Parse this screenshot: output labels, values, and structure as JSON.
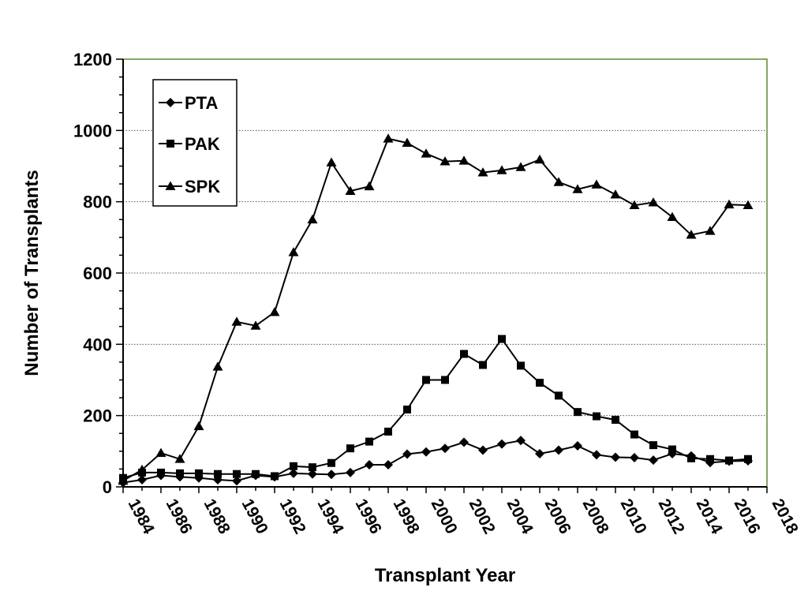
{
  "chart_data": {
    "type": "line",
    "title": "",
    "xlabel": "Transplant Year",
    "ylabel": "Number of Transplants",
    "xlim": [
      1984,
      2018
    ],
    "ylim": [
      0,
      1200
    ],
    "x_ticks": [
      1984,
      1986,
      1988,
      1990,
      1992,
      1994,
      1996,
      1998,
      2000,
      2002,
      2004,
      2006,
      2008,
      2010,
      2012,
      2014,
      2016,
      2018
    ],
    "y_ticks": [
      0,
      200,
      400,
      600,
      800,
      1000,
      1200
    ],
    "grid": "horizontal dotted",
    "legend_position": "top-left",
    "colors": {
      "plot_border": "#5b8a2e",
      "line": "#000000",
      "grid": "#555555"
    },
    "x": [
      1984,
      1985,
      1986,
      1987,
      1988,
      1989,
      1990,
      1991,
      1992,
      1993,
      1994,
      1995,
      1996,
      1997,
      1998,
      1999,
      2000,
      2001,
      2002,
      2003,
      2004,
      2005,
      2006,
      2007,
      2008,
      2009,
      2010,
      2011,
      2012,
      2013,
      2014,
      2015,
      2016,
      2017
    ],
    "series": [
      {
        "name": "PTA",
        "marker": "diamond",
        "values": [
          12,
          20,
          32,
          28,
          25,
          20,
          17,
          32,
          28,
          38,
          36,
          35,
          40,
          62,
          62,
          92,
          98,
          108,
          125,
          103,
          120,
          130,
          93,
          103,
          115,
          90,
          83,
          82,
          75,
          93,
          87,
          68,
          72,
          73
        ]
      },
      {
        "name": "PAK",
        "marker": "square",
        "values": [
          25,
          40,
          40,
          38,
          38,
          36,
          36,
          36,
          30,
          58,
          55,
          67,
          108,
          127,
          155,
          217,
          300,
          300,
          373,
          342,
          415,
          340,
          292,
          256,
          210,
          198,
          188,
          147,
          117,
          105,
          80,
          78,
          74,
          78
        ]
      },
      {
        "name": "SPK",
        "marker": "triangle",
        "values": [
          17,
          48,
          95,
          78,
          170,
          337,
          463,
          452,
          490,
          658,
          750,
          910,
          830,
          843,
          977,
          965,
          935,
          913,
          915,
          882,
          888,
          897,
          918,
          855,
          835,
          848,
          820,
          790,
          798,
          757,
          707,
          718,
          792,
          790
        ]
      }
    ]
  }
}
